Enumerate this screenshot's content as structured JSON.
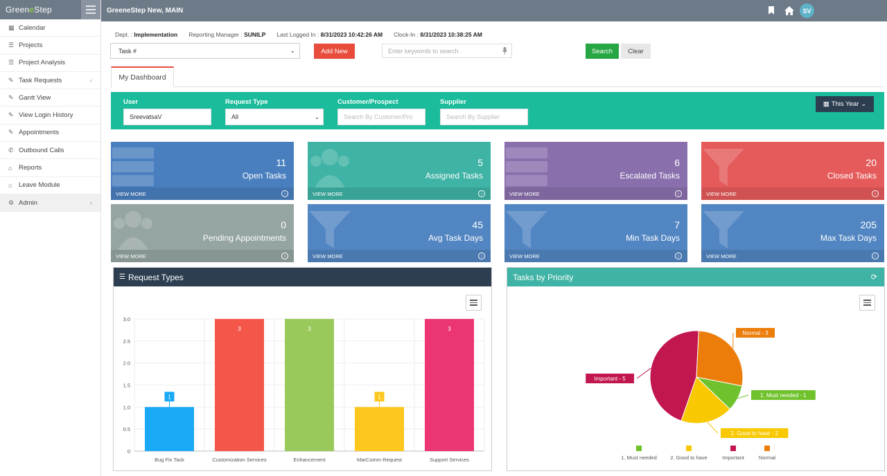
{
  "app": {
    "logo_a": "Green",
    "logo_b": "e",
    "logo_c": "Step",
    "site_title": "GreeneStep New, MAIN",
    "avatar_initials": "SV"
  },
  "sidebar": {
    "items": [
      {
        "label": "Calendar",
        "icon": "calendar-icon",
        "glyph": "▦"
      },
      {
        "label": "Projects",
        "icon": "list-icon",
        "glyph": "☰"
      },
      {
        "label": "Project Analysis",
        "icon": "list-icon",
        "glyph": "☰"
      },
      {
        "label": "Task Requests",
        "icon": "edit-icon",
        "glyph": "✎",
        "expandable": true
      },
      {
        "label": "Gantt View",
        "icon": "edit-icon",
        "glyph": "✎"
      },
      {
        "label": "View Login History",
        "icon": "edit-icon",
        "glyph": "✎"
      },
      {
        "label": "Appointments",
        "icon": "edit-icon",
        "glyph": "✎"
      },
      {
        "label": "Outbound Calls",
        "icon": "phone-icon",
        "glyph": "✆"
      },
      {
        "label": "Reports",
        "icon": "lock-icon",
        "glyph": "⌂"
      },
      {
        "label": "Leave Module",
        "icon": "lock-icon",
        "glyph": "⌂"
      },
      {
        "label": "Admin",
        "icon": "cogs-icon",
        "glyph": "⚙",
        "expandable": true
      }
    ]
  },
  "info": {
    "dept_label": "Dept. :",
    "dept": "Implementation",
    "manager_label": "Reporting Manager :",
    "manager": "SUNILP",
    "logged_label": "Last Logged In :",
    "logged": "8/31/2023 10:42:26 AM",
    "clock_label": "Clock-In :",
    "clock": "8/31/2023 10:38:25 AM"
  },
  "toolbar": {
    "task_select": "Task #",
    "add_new": "Add New",
    "keyword_placeholder": "Enter keywords to search",
    "search": "Search",
    "clear": "Clear"
  },
  "tabs": {
    "dashboard": "My Dashboard"
  },
  "filters": {
    "user_label": "User",
    "user_value": "SreevatsaV",
    "request_label": "Request Type",
    "request_value": "All",
    "customer_label": "Customer/Prospect",
    "customer_placeholder": "Search By Customer/Pro",
    "supplier_label": "Supplier",
    "supplier_placeholder": "Search By Supplier",
    "period": "This Year"
  },
  "tiles": [
    {
      "value": "11",
      "label": "Open Tasks",
      "color": "#4a7fbf",
      "shape": "server"
    },
    {
      "value": "5",
      "label": "Assigned Tasks",
      "color": "#3fb3a5",
      "shape": "users"
    },
    {
      "value": "6",
      "label": "Escalated Tasks",
      "color": "#8a6fad",
      "shape": "server"
    },
    {
      "value": "20",
      "label": "Closed Tasks",
      "color": "#e55a5a",
      "shape": "filter"
    },
    {
      "value": "0",
      "label": "Pending Appointments",
      "color": "#95a5a2",
      "shape": "users"
    },
    {
      "value": "45",
      "label": "Avg Task Days",
      "color": "#5286c2",
      "shape": "filter"
    },
    {
      "value": "7",
      "label": "Min Task Days",
      "color": "#5286c2",
      "shape": "filter"
    },
    {
      "value": "205",
      "label": "Max Task Days",
      "color": "#5286c2",
      "shape": "filter"
    }
  ],
  "tile_view_more": "VIEW MORE",
  "panels": {
    "request_title": "Request Types",
    "priority_title": "Tasks by Priority"
  },
  "chart_data": [
    {
      "type": "bar",
      "categories": [
        "Bug Fix Task",
        "Customization Services",
        "Enhancement",
        "MarComm Request",
        "Support Services"
      ],
      "values": [
        1,
        3,
        3,
        1,
        3
      ],
      "colors": [
        "#1aa9f5",
        "#f4574a",
        "#99c95b",
        "#fdc71e",
        "#ec3573"
      ],
      "yticks": [
        "0",
        "0.5",
        "1.0",
        "1.5",
        "2.0",
        "2.5",
        "3.0"
      ],
      "ylim": [
        0,
        3
      ]
    },
    {
      "type": "pie",
      "slices": [
        {
          "name": "1. Must needed",
          "value": 1,
          "label": "1. Must needed - 1",
          "color": "#6fc22c"
        },
        {
          "name": "2. Good to have",
          "value": 2,
          "label": "2. Good to have - 2",
          "color": "#f8c800"
        },
        {
          "name": "Important",
          "value": 5,
          "label": "Important - 5",
          "color": "#c2164e"
        },
        {
          "name": "Normal",
          "value": 3,
          "label": "Normal - 3",
          "color": "#ec7d0a"
        }
      ]
    }
  ]
}
